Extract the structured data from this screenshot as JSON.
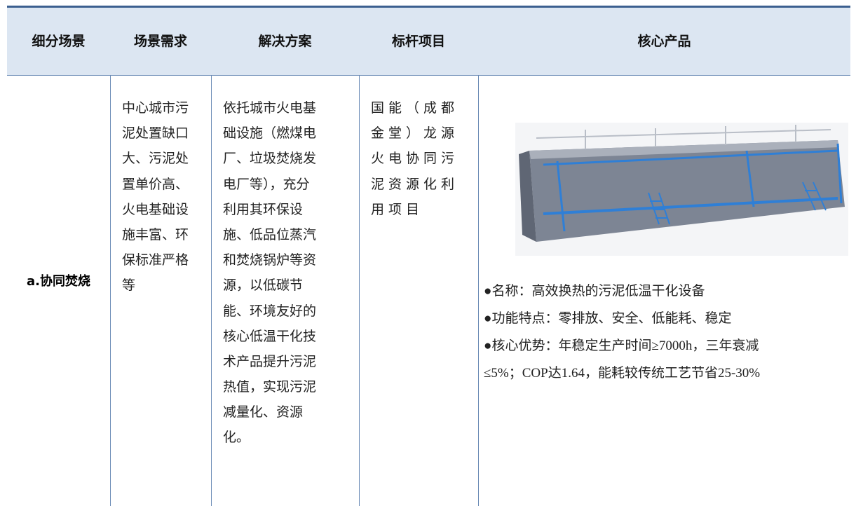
{
  "table": {
    "headers": [
      "细分场景",
      "场景需求",
      "解决方案",
      "标杆项目",
      "核心产品"
    ],
    "rows": [
      {
        "scene": "a.协同焚烧",
        "needs": [
          "中心城市污",
          "泥处置缺口",
          "大、污泥处",
          "置单价高、",
          "火电基础设",
          "施丰富、环",
          "保标准严格",
          "等"
        ],
        "solution": [
          "依托城市火电基",
          "础设施（燃煤电",
          "厂、垃圾焚烧发",
          "电厂等），充分",
          "利用其环保设",
          "施、低品位蒸汽",
          "和焚烧锅炉等资",
          "源，以低碳节",
          "能、环境友好的",
          "核心低温干化技",
          "术产品提升污泥",
          "热值，实现污泥",
          "减量化、资源",
          "化。"
        ],
        "project": [
          "国能（成都",
          "金堂）龙源",
          "火电协同污",
          "泥资源化利",
          "用项目"
        ],
        "product": [
          "●名称：高效换热的污泥低温干化设备",
          "●功能特点：零排放、安全、低能耗、稳定",
          "●核心优势：年稳定生产时间≥7000h，三年衰减",
          "≤5%；COP达1.64，能耗较传统工艺节省25-30%"
        ]
      }
    ]
  }
}
